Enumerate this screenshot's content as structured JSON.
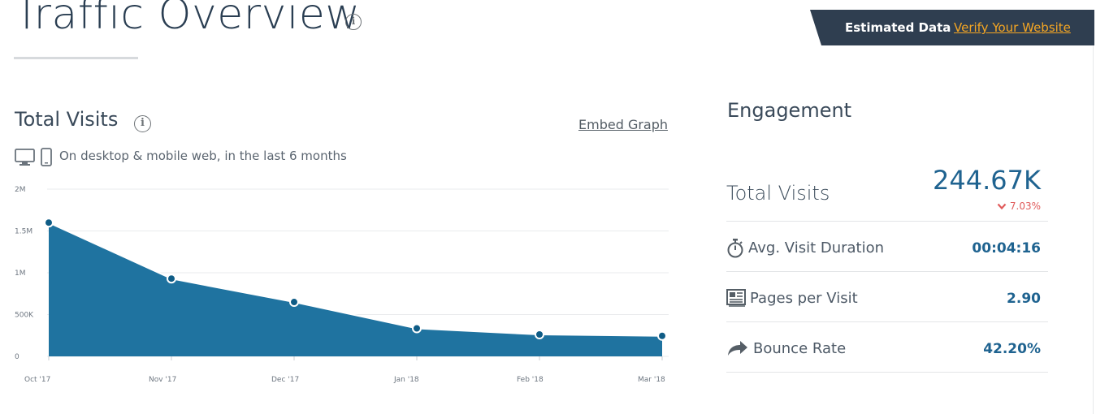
{
  "header": {
    "title": "Traffic Overview",
    "info_symbol": "i",
    "estimated_label": "Estimated Data",
    "verify_link": "Verify Your Website"
  },
  "visits_section": {
    "title": "Total Visits",
    "embed_link": "Embed Graph",
    "subtitle": "On desktop & mobile web, in the last 6 months",
    "icons": [
      "desktop-icon",
      "mobile-icon"
    ]
  },
  "chart_data": {
    "type": "area",
    "categories": [
      "Oct '17",
      "Nov '17",
      "Dec '17",
      "Jan '18",
      "Feb '18",
      "Mar '18"
    ],
    "values": [
      1600000,
      930000,
      650000,
      335000,
      262000,
      245000
    ],
    "yticks": [
      {
        "value": 0,
        "label": "0"
      },
      {
        "value": 500000,
        "label": "500K"
      },
      {
        "value": 1000000,
        "label": "1M"
      },
      {
        "value": 1500000,
        "label": "1.5M"
      },
      {
        "value": 2000000,
        "label": "2M"
      }
    ],
    "ylim": [
      0,
      2000000
    ],
    "grid": true,
    "color": "#1f73a0",
    "title": "",
    "xlabel": "",
    "ylabel": ""
  },
  "engagement": {
    "title": "Engagement",
    "total_visits": {
      "label": "Total Visits",
      "value": "244.67K",
      "change": "7.03%",
      "direction": "down",
      "change_color": "#e05a5a"
    },
    "metrics": [
      {
        "icon": "stopwatch-icon",
        "label": "Avg. Visit Duration",
        "value": "00:04:16"
      },
      {
        "icon": "pages-icon",
        "label": "Pages per Visit",
        "value": "2.90"
      },
      {
        "icon": "bounce-arrow-icon",
        "label": "Bounce Rate",
        "value": "42.20%"
      }
    ]
  },
  "colors": {
    "accent": "#1f6390",
    "link": "#f5a623",
    "banner": "#2f3e50"
  }
}
